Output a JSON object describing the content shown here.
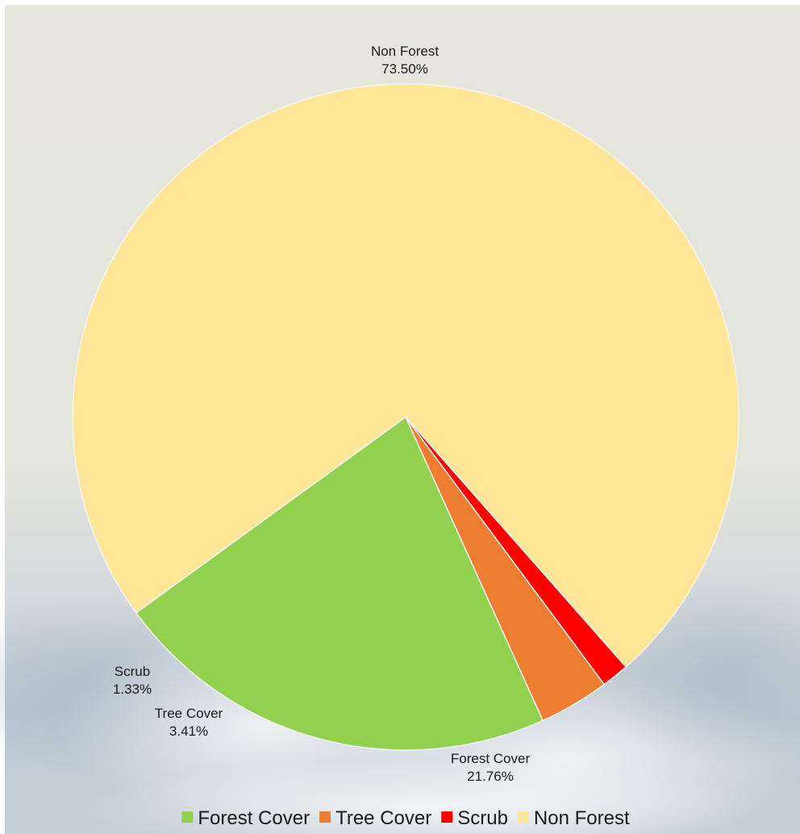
{
  "chart_data": {
    "type": "pie",
    "start_angle_deg": 144,
    "direction": "counterclockwise",
    "slices": [
      {
        "label": "Forest Cover",
        "value": 21.76,
        "display": "21.76%",
        "color": "#92d050"
      },
      {
        "label": "Tree Cover",
        "value": 3.41,
        "display": "3.41%",
        "color": "#ed7d31"
      },
      {
        "label": "Scrub",
        "value": 1.33,
        "display": "1.33%",
        "color": "#ff0000"
      },
      {
        "label": "Non Forest",
        "value": 73.5,
        "display": "73.50%",
        "color": "#ffe699"
      }
    ],
    "legend": {
      "placement": "bottom",
      "items": [
        "Forest Cover",
        "Tree Cover",
        "Scrub",
        "Non Forest"
      ]
    }
  }
}
